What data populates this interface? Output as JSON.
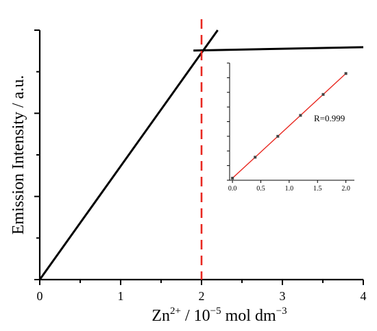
{
  "chart_data": [
    {
      "type": "line",
      "title": "",
      "xlabel": {
        "base": "Zn",
        "sup": "2+",
        "mid": " / 10",
        "exp": "−5",
        "unit": " mol dm",
        "unit_exp": "−3"
      },
      "ylabel": "Emission Intensity / a.u.",
      "xlim": [
        0,
        4
      ],
      "ylim": [
        0,
        1.1
      ],
      "x_ticks": [
        "0",
        "1",
        "2",
        "3",
        "4"
      ],
      "y_ticks_labeled": false,
      "series": [
        {
          "color": "#000000",
          "points": [
            [
              0,
              0.0
            ],
            [
              2.2,
              1.1
            ]
          ]
        },
        {
          "color": "#000000",
          "points": [
            [
              1.9,
              1.01
            ],
            [
              4.0,
              1.025
            ]
          ]
        }
      ],
      "vline": {
        "x": 2.0,
        "color": "#e8271f",
        "style": "dashed"
      },
      "grid": false
    },
    {
      "type": "scatter",
      "inset": true,
      "xlim": [
        -0.05,
        2.15
      ],
      "ylim": [
        -0.02,
        1.1
      ],
      "x_ticks": [
        "0.0",
        "0.5",
        "1.0",
        "1.5",
        "2.0"
      ],
      "points_x": [
        0.0,
        0.4,
        0.8,
        1.2,
        1.6,
        2.0
      ],
      "points_y": [
        0.0,
        0.2,
        0.4,
        0.6,
        0.8,
        1.0
      ],
      "fit_line": {
        "x": [
          0.0,
          2.0
        ],
        "y": [
          0.0,
          1.0
        ],
        "color": "#e8271f"
      },
      "marker_color": "#444444",
      "annotation": "R=0.999"
    }
  ]
}
